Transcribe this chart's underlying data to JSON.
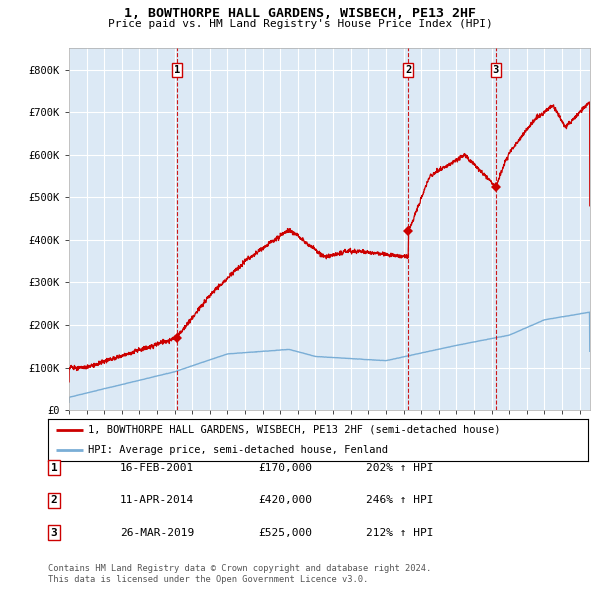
{
  "title": "1, BOWTHORPE HALL GARDENS, WISBECH, PE13 2HF",
  "subtitle": "Price paid vs. HM Land Registry's House Price Index (HPI)",
  "legend_line1": "1, BOWTHORPE HALL GARDENS, WISBECH, PE13 2HF (semi-detached house)",
  "legend_line2": "HPI: Average price, semi-detached house, Fenland",
  "footer1": "Contains HM Land Registry data © Crown copyright and database right 2024.",
  "footer2": "This data is licensed under the Open Government Licence v3.0.",
  "sale_points": [
    {
      "label": "1",
      "date_x": 2001.12,
      "price": 170000,
      "date_str": "16-FEB-2001",
      "price_str": "£170,000",
      "pct": "202% ↑ HPI"
    },
    {
      "label": "2",
      "date_x": 2014.28,
      "price": 420000,
      "date_str": "11-APR-2014",
      "price_str": "£420,000",
      "pct": "246% ↑ HPI"
    },
    {
      "label": "3",
      "date_x": 2019.23,
      "price": 525000,
      "date_str": "26-MAR-2019",
      "price_str": "£525,000",
      "pct": "212% ↑ HPI"
    }
  ],
  "vline_color": "#cc0000",
  "sale_marker_color": "#cc0000",
  "red_line_color": "#cc0000",
  "blue_line_color": "#7aaed6",
  "bg_color": "#dce9f5",
  "grid_color": "#ffffff",
  "ylim": [
    0,
    850000
  ],
  "xlim": [
    1995.0,
    2024.58
  ],
  "yticks": [
    0,
    100000,
    200000,
    300000,
    400000,
    500000,
    600000,
    700000,
    800000
  ],
  "ytick_labels": [
    "£0",
    "£100K",
    "£200K",
    "£300K",
    "£400K",
    "£500K",
    "£600K",
    "£700K",
    "£800K"
  ]
}
